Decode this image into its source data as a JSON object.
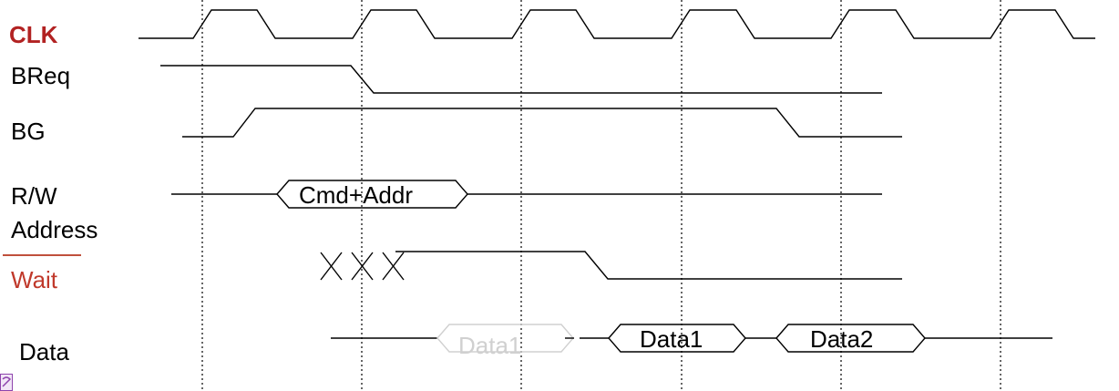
{
  "labels": {
    "clk": "CLK",
    "breq": "BReq",
    "bg": "BG",
    "rw": "R/W",
    "address": "Address",
    "wait": "Wait",
    "data": "Data"
  },
  "bus_values": {
    "cmd_addr": "Cmd+Addr",
    "data1_ghost": "Data1",
    "data1": "Data1",
    "data2": "Data2"
  },
  "colors": {
    "clk_label": "#b22222",
    "wait_label": "#c0392b",
    "wait_rule": "#c0503c",
    "waveform": "#000000",
    "ghost": "#d0d0d0"
  }
}
